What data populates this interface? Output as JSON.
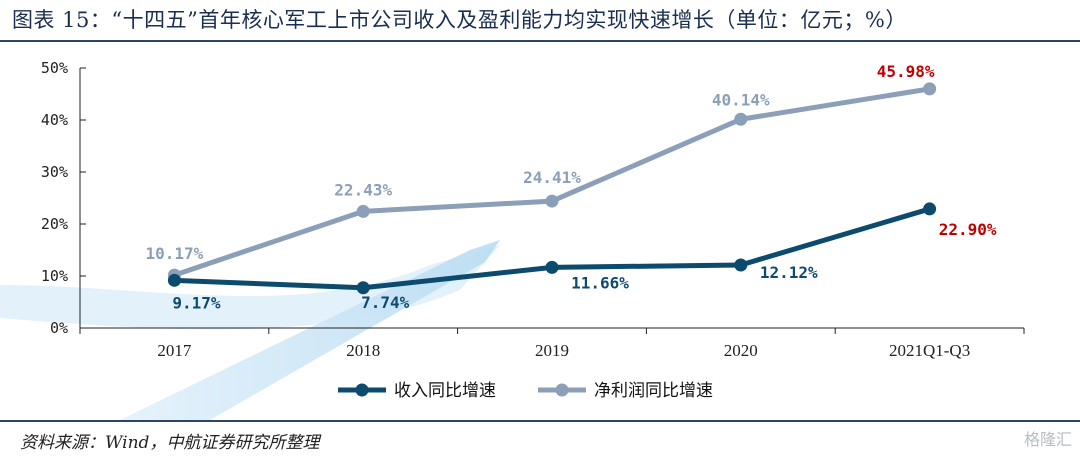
{
  "title": "图表 15：“十四五”首年核心军工上市公司收入及盈利能力均实现快速增长（单位：亿元；%）",
  "source": "资料来源：Wind，中航证券研究所整理",
  "watermark": "格隆汇",
  "colors": {
    "revenue": "#0c4a6e",
    "profit": "#8c9fb8",
    "highlight": "#c00000",
    "axis": "#222222"
  },
  "chart_data": {
    "type": "line",
    "categories": [
      "2017",
      "2018",
      "2019",
      "2020",
      "2021Q1-Q3"
    ],
    "ylim": [
      0,
      50
    ],
    "yticks": [
      0,
      10,
      20,
      30,
      40,
      50
    ],
    "ytick_labels": [
      "0%",
      "10%",
      "20%",
      "30%",
      "40%",
      "50%"
    ],
    "legend_position": "bottom-center",
    "grid": false,
    "series": [
      {
        "name": "收入同比增速",
        "values": [
          9.17,
          7.74,
          11.66,
          12.12,
          22.9
        ],
        "labels": [
          "9.17%",
          "7.74%",
          "11.66%",
          "12.12%",
          "22.90%"
        ]
      },
      {
        "name": "净利润同比增速",
        "values": [
          10.17,
          22.43,
          24.41,
          40.14,
          45.98
        ],
        "labels": [
          "10.17%",
          "22.43%",
          "24.41%",
          "40.14%",
          "45.98%"
        ]
      }
    ]
  }
}
